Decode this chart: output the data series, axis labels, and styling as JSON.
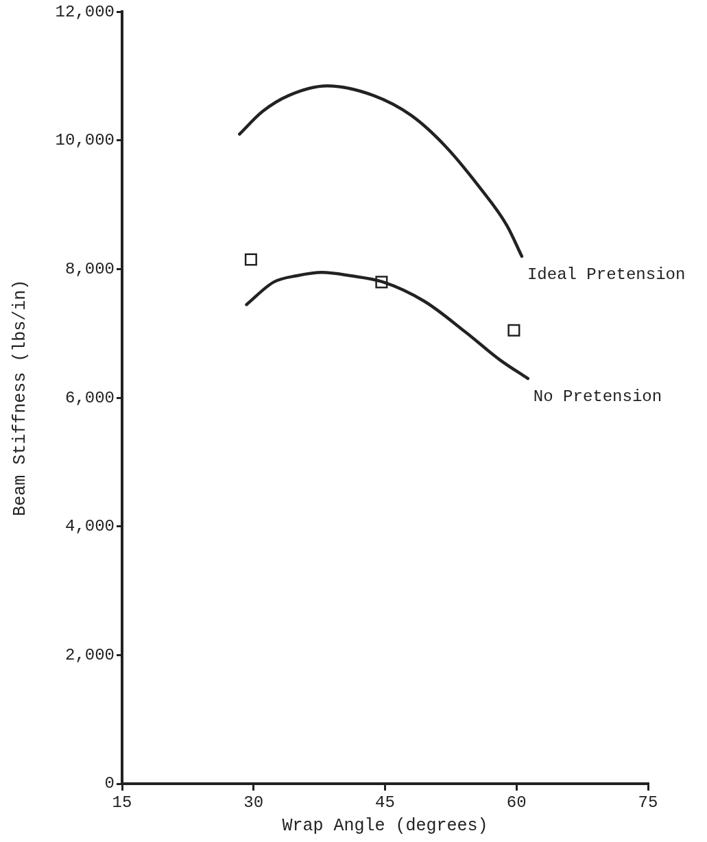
{
  "chart_data": {
    "type": "line",
    "xlabel": "Wrap Angle (degrees)",
    "ylabel": "Beam Stiffness (lbs/in)",
    "xlim": [
      15,
      75
    ],
    "xticks": [
      15,
      30,
      45,
      60,
      75
    ],
    "ylim": [
      0,
      12000
    ],
    "yticks": [
      0,
      {
        "value": 2000,
        "label": "2,000"
      },
      {
        "value": 4000,
        "label": "4,000"
      },
      {
        "value": 6000,
        "label": "6,000"
      },
      {
        "value": 8000,
        "label": "8,000"
      },
      {
        "value": 10000,
        "label": "10,000"
      },
      {
        "value": 12000,
        "label": "12,000"
      }
    ],
    "grid": false,
    "legend": false,
    "series": [
      {
        "name": "Ideal Pretension",
        "color": "#222222",
        "marker": "none",
        "x": [
          28.4,
          31,
          34,
          38.4,
          43.7,
          48,
          51.9,
          55.8,
          58.9,
          60.6
        ],
        "values": [
          10100,
          10450,
          10700,
          10850,
          10700,
          10390,
          9910,
          9270,
          8680,
          8200
        ]
      },
      {
        "name": "No Pretension",
        "color": "#222222",
        "marker": "none",
        "x": [
          29.2,
          32.3,
          35,
          37.8,
          41,
          44.8,
          49.5,
          54.2,
          58.1,
          61.3
        ],
        "values": [
          7450,
          7800,
          7900,
          7950,
          7900,
          7800,
          7500,
          7020,
          6590,
          6300
        ]
      },
      {
        "type": "scatter",
        "color": "#222222",
        "marker": "square",
        "x": [
          29.7,
          44.6,
          59.7
        ],
        "values": [
          8150,
          7800,
          7050
        ]
      }
    ]
  }
}
